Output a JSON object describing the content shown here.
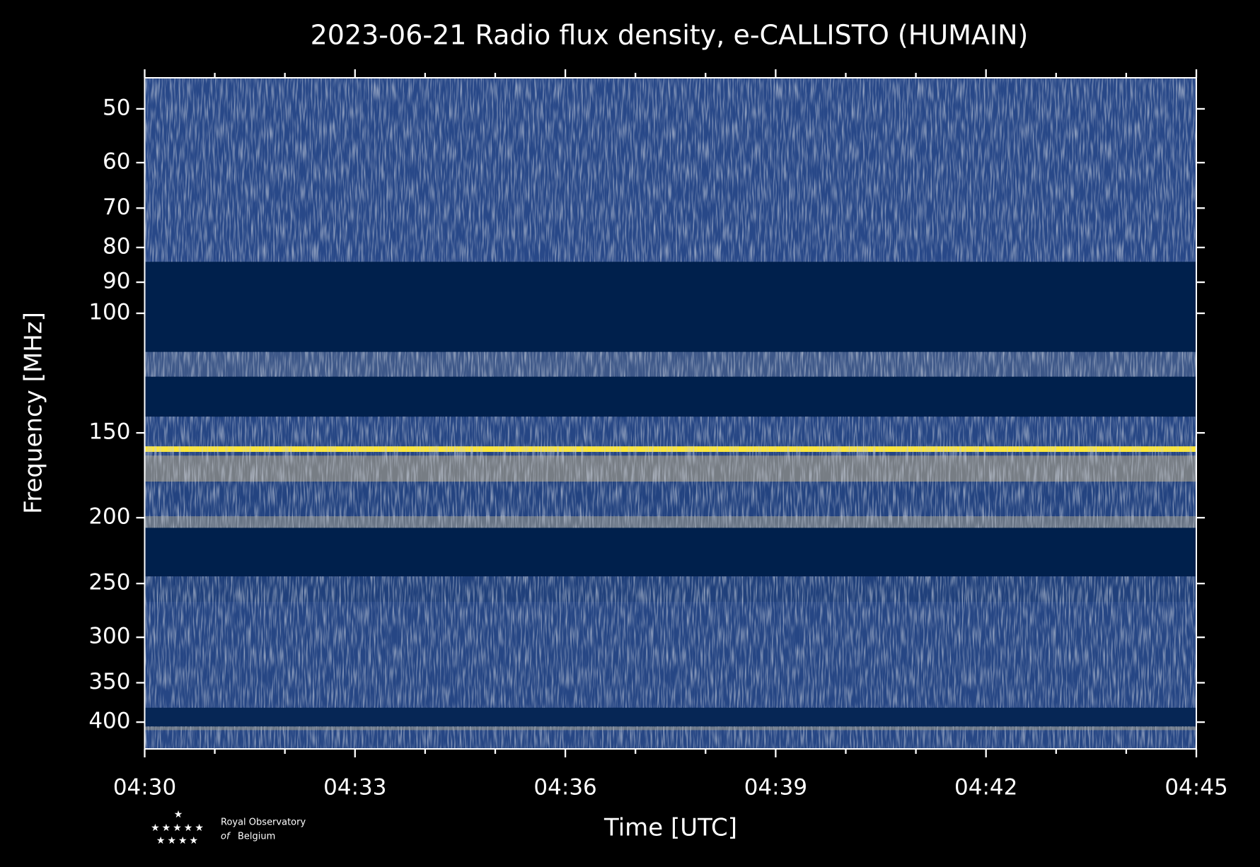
{
  "chart_data": {
    "type": "spectrogram",
    "title": "2023-06-21 Radio flux density, e-CALLISTO (HUMAIN)",
    "x_label": "Time [UTC]",
    "y_label": "Frequency [MHz]",
    "xlim": [
      "04:30",
      "04:45"
    ],
    "xticks": [
      "04:30",
      "04:33",
      "04:36",
      "04:39",
      "04:42",
      "04:45"
    ],
    "xminorticks": [
      "04:31",
      "04:32",
      "04:34",
      "04:35",
      "04:37",
      "04:38",
      "04:40",
      "04:41",
      "04:43",
      "04:44"
    ],
    "ylim": [
      45,
      438
    ],
    "y_log": true,
    "y_inverted": true,
    "yticks": [
      50,
      60,
      70,
      80,
      90,
      100,
      150,
      200,
      250,
      300,
      350,
      400
    ],
    "colormap": [
      "#00204c",
      "#2a4a8a",
      "#8a8a82",
      "#fde737"
    ],
    "bands": [
      {
        "from": 45,
        "to": 84,
        "intensity": 0.32
      },
      {
        "from": 84,
        "to": 114,
        "intensity": 0.0
      },
      {
        "from": 114,
        "to": 124,
        "intensity": 0.4
      },
      {
        "from": 124,
        "to": 142,
        "intensity": 0.0
      },
      {
        "from": 142,
        "to": 157,
        "intensity": 0.3
      },
      {
        "from": 157,
        "to": 160,
        "intensity": 1.0
      },
      {
        "from": 160,
        "to": 162,
        "intensity": 0.3
      },
      {
        "from": 162,
        "to": 177,
        "intensity": 0.6
      },
      {
        "from": 177,
        "to": 199,
        "intensity": 0.28
      },
      {
        "from": 199,
        "to": 207,
        "intensity": 0.55
      },
      {
        "from": 207,
        "to": 244,
        "intensity": 0.0
      },
      {
        "from": 244,
        "to": 266,
        "intensity": 0.25
      },
      {
        "from": 266,
        "to": 381,
        "intensity": 0.3
      },
      {
        "from": 381,
        "to": 406,
        "intensity": 0.05
      },
      {
        "from": 406,
        "to": 411,
        "intensity": 0.55
      },
      {
        "from": 411,
        "to": 438,
        "intensity": 0.3
      }
    ]
  },
  "logo": {
    "line1": "Royal Observatory",
    "line2_prefix": "of",
    "line2": "Belgium"
  }
}
